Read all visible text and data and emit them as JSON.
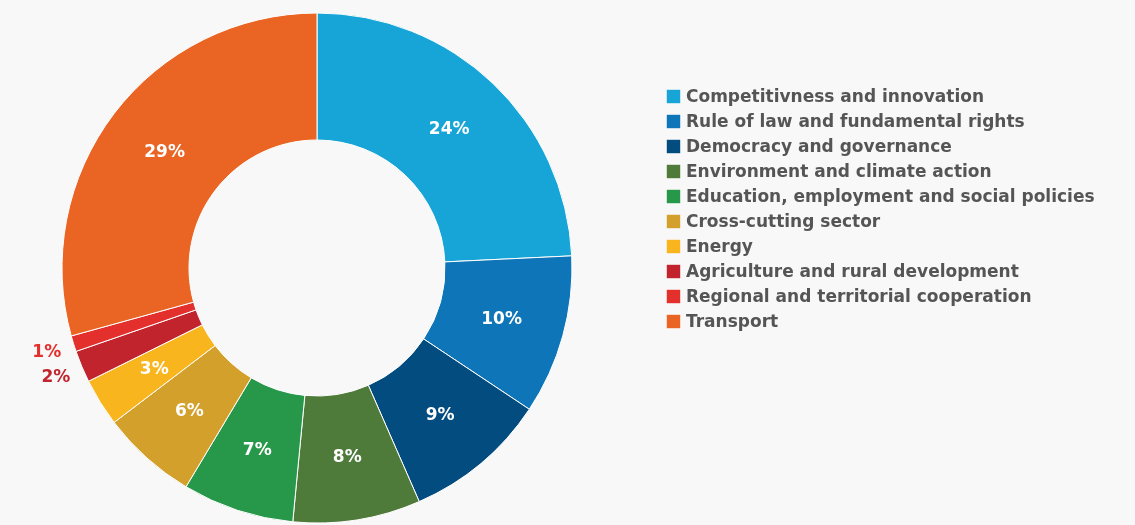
{
  "chart_data": {
    "type": "donut",
    "categories": [
      "Competitivness and innovation",
      "Rule of law and fundamental rights",
      "Democracy and governance",
      "Environment and climate action",
      "Education, employment and social policies",
      "Cross-cutting sector",
      "Energy",
      "Agriculture and rural development",
      "Regional and territorial cooperation",
      "Transport"
    ],
    "values": [
      24,
      10,
      9,
      8,
      7,
      6,
      3,
      2,
      1,
      29
    ],
    "colors": [
      "#16a5d6",
      "#0e76b8",
      "#034c80",
      "#4e7a3a",
      "#27984a",
      "#d3a02b",
      "#f8b51d",
      "#c2242d",
      "#e3302d",
      "#ea6524"
    ],
    "value_labels": [
      "24%",
      "10%",
      "9%",
      "8%",
      "7%",
      "6%",
      "3%",
      "2%",
      "1%",
      "29%"
    ],
    "legend": "right"
  }
}
